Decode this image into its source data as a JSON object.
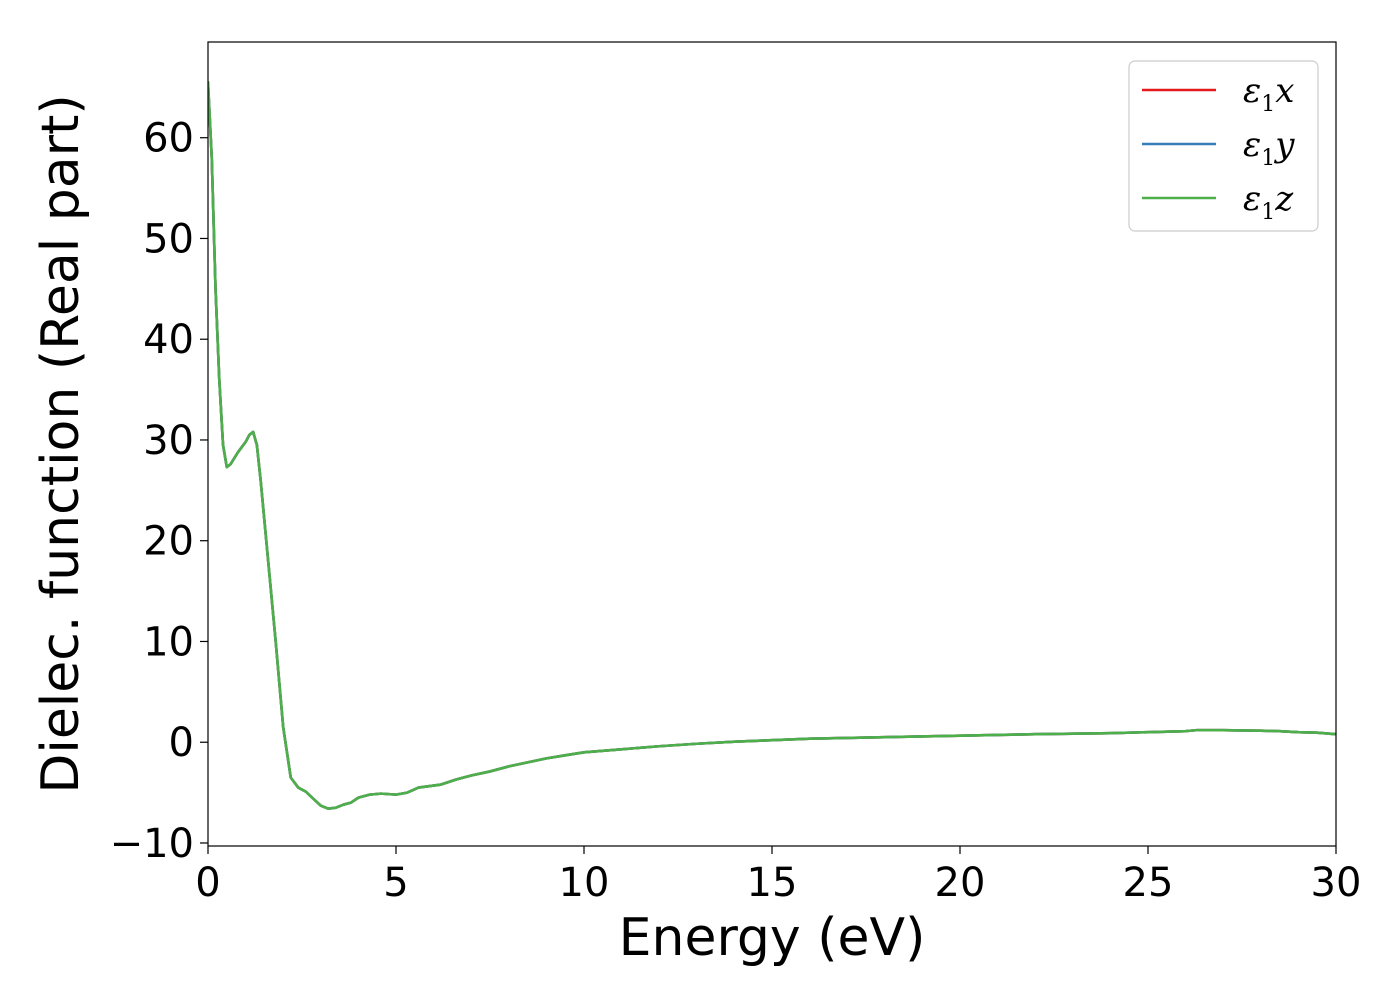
{
  "chart_data": {
    "type": "line",
    "title": "",
    "xlabel": "Energy (eV)",
    "ylabel": "Dielec. function (Real part)",
    "xlim": [
      0,
      30
    ],
    "ylim": [
      -10.3,
      69.5
    ],
    "xticks": [
      0,
      5,
      10,
      15,
      20,
      25,
      30
    ],
    "xtick_labels": [
      "0",
      "5",
      "10",
      "15",
      "20",
      "25",
      "30"
    ],
    "yticks": [
      -10,
      0,
      10,
      20,
      30,
      40,
      50,
      60
    ],
    "ytick_labels": [
      "−10",
      "0",
      "10",
      "20",
      "30",
      "40",
      "50",
      "60"
    ],
    "grid": false,
    "legend_position": "top-right",
    "series": [
      {
        "name": "ε1x",
        "legend_base": "ε",
        "legend_sub": "1",
        "legend_var": "x",
        "color": "#e41a1c",
        "x": [
          0,
          0.1,
          0.2,
          0.3,
          0.4,
          0.5,
          0.6,
          0.8,
          1.0,
          1.1,
          1.2,
          1.3,
          1.4,
          1.6,
          1.8,
          2.0,
          2.2,
          2.4,
          2.6,
          2.8,
          3.0,
          3.2,
          3.4,
          3.6,
          3.8,
          4.0,
          4.3,
          4.6,
          5.0,
          5.3,
          5.6,
          5.8,
          6.2,
          6.6,
          7.0,
          7.5,
          8.0,
          8.5,
          9.0,
          9.5,
          10.0,
          11.0,
          12.0,
          13.0,
          14.0,
          15.0,
          16.0,
          18.0,
          20.0,
          22.0,
          24.0,
          25.0,
          26.0,
          26.3,
          27.0,
          28.0,
          28.5,
          29.0,
          29.5,
          30.0
        ],
        "y": [
          65.5,
          58.0,
          45.0,
          36.0,
          29.5,
          27.3,
          27.6,
          28.8,
          29.8,
          30.5,
          30.8,
          29.5,
          26.0,
          18.0,
          10.0,
          1.5,
          -3.5,
          -4.5,
          -4.9,
          -5.6,
          -6.3,
          -6.6,
          -6.5,
          -6.2,
          -6.0,
          -5.5,
          -5.2,
          -5.1,
          -5.2,
          -5.0,
          -4.5,
          -4.4,
          -4.2,
          -3.7,
          -3.3,
          -2.9,
          -2.4,
          -2.0,
          -1.6,
          -1.3,
          -1.0,
          -0.7,
          -0.4,
          -0.15,
          0.05,
          0.2,
          0.35,
          0.5,
          0.65,
          0.8,
          0.9,
          1.0,
          1.1,
          1.2,
          1.2,
          1.15,
          1.1,
          1.0,
          0.95,
          0.8
        ]
      },
      {
        "name": "ε1y",
        "legend_base": "ε",
        "legend_sub": "1",
        "legend_var": "y",
        "color": "#377eb8",
        "x": [
          0,
          0.1,
          0.2,
          0.3,
          0.4,
          0.5,
          0.6,
          0.8,
          1.0,
          1.1,
          1.2,
          1.3,
          1.4,
          1.6,
          1.8,
          2.0,
          2.2,
          2.4,
          2.6,
          2.8,
          3.0,
          3.2,
          3.4,
          3.6,
          3.8,
          4.0,
          4.3,
          4.6,
          5.0,
          5.3,
          5.6,
          5.8,
          6.2,
          6.6,
          7.0,
          7.5,
          8.0,
          8.5,
          9.0,
          9.5,
          10.0,
          11.0,
          12.0,
          13.0,
          14.0,
          15.0,
          16.0,
          18.0,
          20.0,
          22.0,
          24.0,
          25.0,
          26.0,
          26.3,
          27.0,
          28.0,
          28.5,
          29.0,
          29.5,
          30.0
        ],
        "y": [
          65.5,
          58.0,
          45.0,
          36.0,
          29.5,
          27.3,
          27.6,
          28.8,
          29.8,
          30.5,
          30.8,
          29.5,
          26.0,
          18.0,
          10.0,
          1.5,
          -3.5,
          -4.5,
          -4.9,
          -5.6,
          -6.3,
          -6.6,
          -6.5,
          -6.2,
          -6.0,
          -5.5,
          -5.2,
          -5.1,
          -5.2,
          -5.0,
          -4.5,
          -4.4,
          -4.2,
          -3.7,
          -3.3,
          -2.9,
          -2.4,
          -2.0,
          -1.6,
          -1.3,
          -1.0,
          -0.7,
          -0.4,
          -0.15,
          0.05,
          0.2,
          0.35,
          0.5,
          0.65,
          0.8,
          0.9,
          1.0,
          1.1,
          1.2,
          1.2,
          1.15,
          1.1,
          1.0,
          0.95,
          0.8
        ]
      },
      {
        "name": "ε1z",
        "legend_base": "ε",
        "legend_sub": "1",
        "legend_var": "z",
        "color": "#4daf4a",
        "x": [
          0,
          0.1,
          0.2,
          0.3,
          0.4,
          0.5,
          0.6,
          0.8,
          1.0,
          1.1,
          1.2,
          1.3,
          1.4,
          1.6,
          1.8,
          2.0,
          2.2,
          2.4,
          2.6,
          2.8,
          3.0,
          3.2,
          3.4,
          3.6,
          3.8,
          4.0,
          4.3,
          4.6,
          5.0,
          5.3,
          5.6,
          5.8,
          6.2,
          6.6,
          7.0,
          7.5,
          8.0,
          8.5,
          9.0,
          9.5,
          10.0,
          11.0,
          12.0,
          13.0,
          14.0,
          15.0,
          16.0,
          18.0,
          20.0,
          22.0,
          24.0,
          25.0,
          26.0,
          26.3,
          27.0,
          28.0,
          28.5,
          29.0,
          29.5,
          30.0
        ],
        "y": [
          65.5,
          58.0,
          45.0,
          36.0,
          29.5,
          27.3,
          27.6,
          28.8,
          29.8,
          30.5,
          30.8,
          29.5,
          26.0,
          18.0,
          10.0,
          1.5,
          -3.5,
          -4.5,
          -4.9,
          -5.6,
          -6.3,
          -6.6,
          -6.5,
          -6.2,
          -6.0,
          -5.5,
          -5.2,
          -5.1,
          -5.2,
          -5.0,
          -4.5,
          -4.4,
          -4.2,
          -3.7,
          -3.3,
          -2.9,
          -2.4,
          -2.0,
          -1.6,
          -1.3,
          -1.0,
          -0.7,
          -0.4,
          -0.15,
          0.05,
          0.2,
          0.35,
          0.5,
          0.65,
          0.8,
          0.9,
          1.0,
          1.1,
          1.2,
          1.2,
          1.15,
          1.1,
          1.0,
          0.95,
          0.8
        ]
      }
    ]
  }
}
